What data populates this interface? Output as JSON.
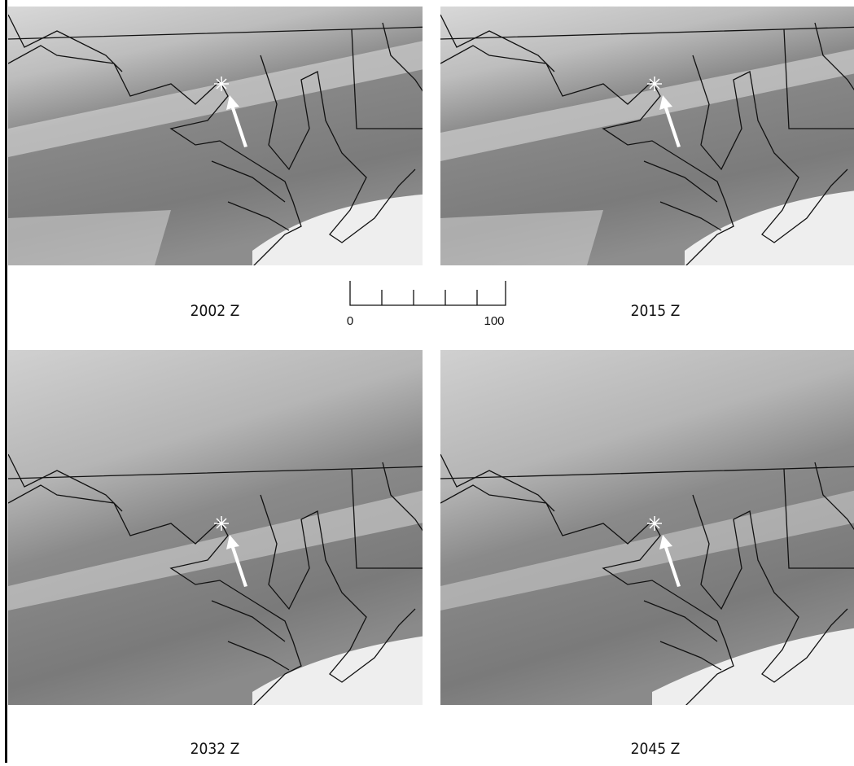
{
  "panels": [
    {
      "label": "2002 Z"
    },
    {
      "label": "2015 Z"
    },
    {
      "label": "2032 Z"
    },
    {
      "label": "2045 Z"
    }
  ],
  "scale_bar": {
    "start": 0,
    "end": 100
  }
}
